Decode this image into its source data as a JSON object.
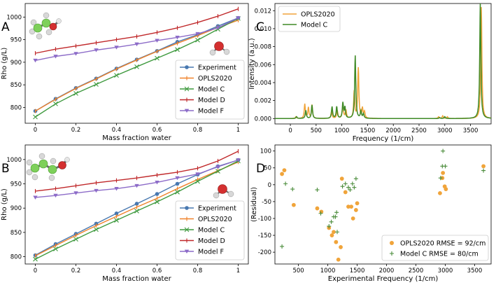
{
  "chart_data": [
    {
      "panel": "A",
      "type": "line",
      "xlabel": "Mass fraction water",
      "ylabel": "Rho (g/L)",
      "xlim": [
        -0.05,
        1.05
      ],
      "ylim": [
        765,
        1030
      ],
      "xticks": [
        0.0,
        0.2,
        0.4,
        0.6,
        0.8,
        1.0
      ],
      "yticks": [
        800,
        850,
        900,
        950,
        1000
      ],
      "x": [
        0.0,
        0.1,
        0.2,
        0.3,
        0.4,
        0.5,
        0.6,
        0.7,
        0.8,
        0.9,
        1.0
      ],
      "legend_position": "lower-right",
      "series": [
        {
          "name": "Experiment",
          "color": "#4878b0",
          "marker": "circle",
          "values": [
            792,
            819,
            843,
            864,
            886,
            906,
            925,
            945,
            961,
            980,
            998
          ]
        },
        {
          "name": "OPLS2020",
          "color": "#f0822a",
          "marker": "tick",
          "values": [
            792,
            818,
            842,
            863,
            885,
            905,
            924,
            942,
            959,
            977,
            993
          ]
        },
        {
          "name": "Model C",
          "color": "#3f9a3f",
          "marker": "x",
          "values": [
            779,
            808,
            831,
            851,
            871,
            890,
            909,
            928,
            949,
            973,
            997
          ]
        },
        {
          "name": "Model D",
          "color": "#c0282a",
          "marker": "tick",
          "values": [
            920,
            929,
            936,
            943,
            950,
            957,
            966,
            976,
            988,
            1002,
            1018
          ]
        },
        {
          "name": "Model F",
          "color": "#8c6bc8",
          "marker": "triangle-down",
          "values": [
            904,
            913,
            919,
            927,
            933,
            940,
            948,
            955,
            963,
            976,
            998
          ]
        }
      ]
    },
    {
      "panel": "B",
      "type": "line",
      "xlabel": "Mass fraction water",
      "ylabel": "Rho (g/L)",
      "xlim": [
        -0.05,
        1.05
      ],
      "ylim": [
        785,
        1030
      ],
      "xticks": [
        0.0,
        0.2,
        0.4,
        0.6,
        0.8,
        1.0
      ],
      "yticks": [
        800,
        850,
        900,
        950,
        1000
      ],
      "x": [
        0.0,
        0.1,
        0.2,
        0.3,
        0.4,
        0.5,
        0.6,
        0.7,
        0.8,
        0.9,
        1.0
      ],
      "legend_position": "lower-right",
      "series": [
        {
          "name": "Experiment",
          "color": "#4878b0",
          "marker": "circle",
          "values": [
            803,
            826,
            847,
            868,
            889,
            909,
            929,
            950,
            969,
            986,
            999
          ]
        },
        {
          "name": "OPLS2020",
          "color": "#f0822a",
          "marker": "tick",
          "values": [
            802,
            823,
            844,
            864,
            883,
            902,
            920,
            940,
            959,
            977,
            995
          ]
        },
        {
          "name": "Model C",
          "color": "#3f9a3f",
          "marker": "x",
          "values": [
            795,
            816,
            836,
            856,
            875,
            894,
            913,
            933,
            955,
            976,
            997
          ]
        },
        {
          "name": "Model D",
          "color": "#c0282a",
          "marker": "tick",
          "values": [
            935,
            940,
            946,
            952,
            957,
            962,
            968,
            974,
            982,
            997,
            1017
          ]
        },
        {
          "name": "Model F",
          "color": "#8c6bc8",
          "marker": "triangle-down",
          "values": [
            922,
            926,
            931,
            936,
            940,
            946,
            953,
            962,
            970,
            985,
            999
          ]
        }
      ]
    },
    {
      "panel": "C",
      "type": "line",
      "xlabel": "Frequency (1/cm)",
      "ylabel": "Intensity (a.u.)",
      "xlim": [
        -300,
        3900
      ],
      "ylim": [
        -0.0006,
        0.0128
      ],
      "xticks": [
        0,
        500,
        1000,
        1500,
        2000,
        2500,
        3000,
        3500
      ],
      "yticks": [
        0.0,
        0.002,
        0.004,
        0.006,
        0.008,
        0.01,
        0.012
      ],
      "ytick_labels": [
        "0.000",
        "0.002",
        "0.004",
        "0.006",
        "0.008",
        "0.010",
        "0.012"
      ],
      "legend_position": "top-left",
      "series": [
        {
          "name": "OPLS2020",
          "color": "#f0a43a",
          "peaks": [
            [
              110,
              0.0002
            ],
            [
              280,
              0.0016
            ],
            [
              350,
              0.0012
            ],
            [
              420,
              0.0015
            ],
            [
              800,
              0.0008
            ],
            [
              910,
              0.0009
            ],
            [
              1020,
              0.0016
            ],
            [
              1080,
              0.0009
            ],
            [
              1240,
              0.003
            ],
            [
              1320,
              0.0056
            ],
            [
              1400,
              0.0011
            ],
            [
              1440,
              0.0007
            ],
            [
              2880,
              0.0002
            ],
            [
              2960,
              0.0003
            ],
            [
              3050,
              0.0002
            ],
            [
              3710,
              0.0124
            ]
          ]
        },
        {
          "name": "Model C",
          "color": "#3e8a26",
          "peaks": [
            [
              120,
              0.0002
            ],
            [
              300,
              0.0009
            ],
            [
              420,
              0.0015
            ],
            [
              810,
              0.0013
            ],
            [
              900,
              0.0013
            ],
            [
              1020,
              0.0017
            ],
            [
              1060,
              0.0012
            ],
            [
              1260,
              0.007
            ],
            [
              1370,
              0.0008
            ],
            [
              1420,
              0.0005
            ],
            [
              2900,
              0.0001
            ],
            [
              3000,
              0.0002
            ],
            [
              3690,
              0.0128
            ]
          ]
        }
      ]
    },
    {
      "panel": "D",
      "type": "scatter",
      "xlabel": "Experimental Frequency (1/cm)",
      "ylabel": "(Residual)",
      "xlim": [
        100,
        3780
      ],
      "ylim": [
        -235,
        118
      ],
      "xticks": [
        500,
        1000,
        1500,
        2000,
        2500,
        3000,
        3500
      ],
      "yticks": [
        -200,
        -150,
        -100,
        -50,
        0,
        50,
        100
      ],
      "legend_position": "lower-right",
      "series": [
        {
          "name": "OPLS2020 RMSE = 92/cm",
          "color": "#f0a43a",
          "marker": "circle",
          "points": [
            [
              220,
              32
            ],
            [
              260,
              43
            ],
            [
              420,
              -60
            ],
            [
              820,
              -70
            ],
            [
              890,
              -80
            ],
            [
              1020,
              -128
            ],
            [
              1070,
              -150
            ],
            [
              1100,
              -140
            ],
            [
              1140,
              -170
            ],
            [
              1180,
              -222
            ],
            [
              1220,
              -185
            ],
            [
              1240,
              18
            ],
            [
              1300,
              -22
            ],
            [
              1350,
              -65
            ],
            [
              1400,
              -65
            ],
            [
              1430,
              -100
            ],
            [
              1480,
              -75
            ],
            [
              1500,
              -55
            ],
            [
              2910,
              -25
            ],
            [
              2950,
              20
            ],
            [
              2960,
              35
            ],
            [
              2990,
              -5
            ],
            [
              3010,
              -13
            ],
            [
              3650,
              55
            ]
          ]
        },
        {
          "name": "Model C RMSE = 80/cm",
          "color": "#4a8c3a",
          "marker": "plus",
          "points": [
            [
              220,
              -183
            ],
            [
              280,
              3
            ],
            [
              400,
              -13
            ],
            [
              820,
              -15
            ],
            [
              880,
              -85
            ],
            [
              1020,
              -123
            ],
            [
              1060,
              -110
            ],
            [
              1100,
              -95
            ],
            [
              1130,
              -95
            ],
            [
              1150,
              -82
            ],
            [
              1160,
              -140
            ],
            [
              1250,
              -5
            ],
            [
              1300,
              3
            ],
            [
              1350,
              -8
            ],
            [
              1380,
              -15
            ],
            [
              1420,
              3
            ],
            [
              1450,
              -8
            ],
            [
              1480,
              18
            ],
            [
              2920,
              20
            ],
            [
              2950,
              55
            ],
            [
              2960,
              100
            ],
            [
              3000,
              55
            ],
            [
              3650,
              42
            ]
          ]
        }
      ]
    }
  ]
}
